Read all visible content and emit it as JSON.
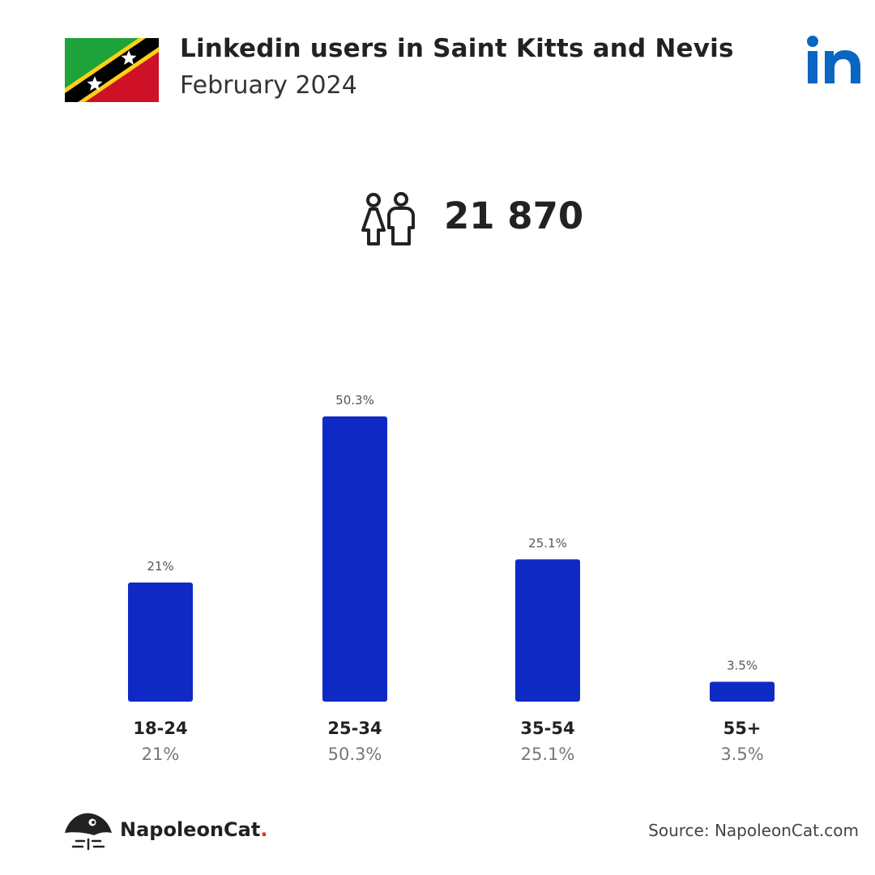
{
  "header": {
    "title": "Linkedin users in Saint Kitts and Nevis",
    "subtitle": "February 2024",
    "brand_icon": "linkedin-logo",
    "flag_icon": "saint-kitts-and-nevis-flag"
  },
  "summary": {
    "icon": "users-icon",
    "total": "21 870"
  },
  "colors": {
    "bar": "#0f2ac4",
    "linkedin": "#0a66c2",
    "brand_dot": "#e8312f"
  },
  "chart_data": {
    "type": "bar",
    "categories": [
      "18-24",
      "25-34",
      "35-54",
      "55+"
    ],
    "values": [
      21,
      50.3,
      25.1,
      3.5
    ],
    "value_labels": [
      "21%",
      "50.3%",
      "25.1%",
      "3.5%"
    ],
    "title": "",
    "xlabel": "",
    "ylabel": "",
    "ylim": [
      0,
      50.3
    ],
    "grid": false
  },
  "footer": {
    "brand_name": "NapoleonCat",
    "brand_dot": ".",
    "source": "Source: NapoleonCat.com"
  }
}
